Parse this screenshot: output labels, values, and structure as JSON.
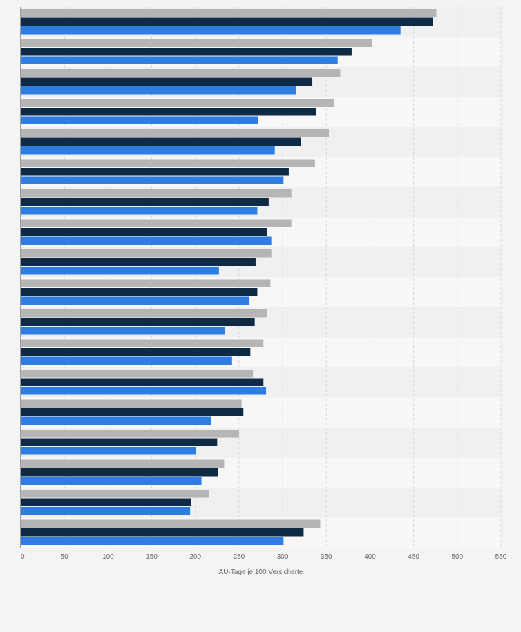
{
  "chart_data": {
    "type": "bar",
    "orientation": "horizontal",
    "categories": [
      "",
      "",
      "",
      "",
      "",
      "",
      "",
      "",
      "",
      "",
      "",
      "",
      "",
      "",
      "",
      "",
      "",
      ""
    ],
    "series": [
      {
        "values": [
          476,
          402,
          366,
          359,
          353,
          337,
          310,
          310,
          287,
          286,
          282,
          278,
          266,
          253,
          250,
          233,
          216,
          343
        ]
      },
      {
        "values": [
          472,
          379,
          334,
          338,
          321,
          307,
          284,
          282,
          269,
          271,
          268,
          263,
          278,
          255,
          225,
          226,
          195,
          324
        ]
      },
      {
        "values": [
          435,
          363,
          315,
          272,
          291,
          301,
          271,
          287,
          227,
          262,
          234,
          242,
          281,
          218,
          201,
          207,
          194,
          301
        ]
      }
    ],
    "colors": [
      "#b5b5b5",
      "#0f2a44",
      "#2e7de0"
    ],
    "xlabel": "AU-Tage je 100 Versicherte",
    "xlim": [
      0,
      550
    ],
    "xticks": [
      0,
      50,
      100,
      150,
      200,
      250,
      300,
      350,
      400,
      450,
      500,
      550
    ],
    "grid": true,
    "legend": "none"
  }
}
